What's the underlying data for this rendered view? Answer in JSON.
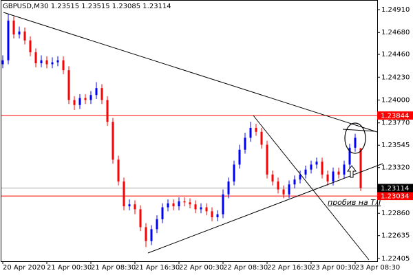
{
  "chart_data": {
    "type": "candlestick",
    "title": "GBPUSD,M30  1.23515 1.23515 1.23085 1.23114",
    "categories": [
      "20 Apr 2020",
      null,
      null,
      null,
      null,
      null,
      null,
      null,
      "21 Apr 00:30",
      null,
      null,
      null,
      null,
      null,
      null,
      null,
      "21 Apr 08:30",
      null,
      null,
      null,
      null,
      null,
      null,
      null,
      "21 Apr 16:30",
      null,
      null,
      null,
      null,
      null,
      null,
      null,
      "22 Apr 00:30",
      null,
      null,
      null,
      null,
      null,
      null,
      null,
      "22 Apr 08:30",
      null,
      null,
      null,
      null,
      null,
      null,
      null,
      "22 Apr 16:30",
      null,
      null,
      null,
      null,
      null,
      null,
      null,
      "23 Apr 00:30",
      null,
      null,
      null,
      null,
      null,
      null,
      null,
      "23 Apr 08:30",
      null
    ],
    "open": [
      1.2436,
      1.244,
      1.248,
      1.2466,
      1.2469,
      1.246,
      1.2448,
      1.2437,
      1.244,
      1.2436,
      1.2438,
      1.244,
      1.243,
      1.24,
      1.2395,
      1.2402,
      1.24,
      1.2405,
      1.2412,
      1.24,
      1.2378,
      1.234,
      1.2318,
      1.2293,
      1.2295,
      1.229,
      1.2272,
      1.2258,
      1.227,
      1.228,
      1.2292,
      1.2296,
      1.2293,
      1.2298,
      1.2297,
      1.2295,
      1.229,
      1.2292,
      1.2288,
      1.2282,
      1.2285,
      1.2305,
      1.2318,
      1.2335,
      1.235,
      1.2362,
      1.2372,
      1.2368,
      1.2355,
      1.2325,
      1.2318,
      1.231,
      1.2305,
      1.2315,
      1.232,
      1.2325,
      1.233,
      1.2335,
      1.2338,
      1.2325,
      1.2318,
      1.2328,
      1.2325,
      1.2335,
      1.2352,
      1.23515
    ],
    "high": [
      1.2445,
      1.2487,
      1.2484,
      1.2474,
      1.2473,
      1.2464,
      1.2452,
      1.2445,
      1.2444,
      1.2443,
      1.2444,
      1.2444,
      1.2434,
      1.2404,
      1.2406,
      1.2406,
      1.2409,
      1.2418,
      1.2416,
      1.2404,
      1.2382,
      1.2344,
      1.2322,
      1.23,
      1.2299,
      1.2294,
      1.2276,
      1.2274,
      1.2284,
      1.2296,
      1.23,
      1.23,
      1.2302,
      1.2302,
      1.2301,
      1.2299,
      1.2296,
      1.2296,
      1.2292,
      1.2289,
      1.231,
      1.2322,
      1.2339,
      1.2355,
      1.2367,
      1.2378,
      1.2376,
      1.2372,
      1.2359,
      1.2329,
      1.2322,
      1.2314,
      1.2319,
      1.2324,
      1.2329,
      1.2334,
      1.2339,
      1.2342,
      1.2342,
      1.2329,
      1.2332,
      1.2332,
      1.2339,
      1.2356,
      1.2366,
      1.23515
    ],
    "low": [
      1.2432,
      1.2436,
      1.2462,
      1.2462,
      1.2456,
      1.2444,
      1.2433,
      1.2433,
      1.2432,
      1.2432,
      1.2434,
      1.2426,
      1.2396,
      1.239,
      1.2391,
      1.2396,
      1.2396,
      1.2401,
      1.2396,
      1.2374,
      1.2336,
      1.2314,
      1.2289,
      1.2289,
      1.2285,
      1.2268,
      1.2252,
      1.2254,
      1.2266,
      1.2276,
      1.2288,
      1.2289,
      1.2289,
      1.2293,
      1.2291,
      1.2286,
      1.2286,
      1.2284,
      1.2278,
      1.2278,
      1.2281,
      1.2301,
      1.2314,
      1.2331,
      1.2346,
      1.2358,
      1.2364,
      1.2351,
      1.2321,
      1.2314,
      1.2306,
      1.2301,
      1.2301,
      1.2311,
      1.2316,
      1.2321,
      1.2326,
      1.2331,
      1.2321,
      1.2314,
      1.2314,
      1.2321,
      1.2321,
      1.2331,
      1.2348,
      1.23085
    ],
    "close": [
      1.244,
      1.248,
      1.2466,
      1.2469,
      1.246,
      1.2448,
      1.2437,
      1.244,
      1.2436,
      1.2438,
      1.244,
      1.243,
      1.24,
      1.2395,
      1.2402,
      1.24,
      1.2405,
      1.2412,
      1.24,
      1.2378,
      1.234,
      1.2318,
      1.2293,
      1.2295,
      1.229,
      1.2272,
      1.2258,
      1.227,
      1.228,
      1.2292,
      1.2296,
      1.2293,
      1.2298,
      1.2297,
      1.2295,
      1.229,
      1.2292,
      1.2288,
      1.2282,
      1.2285,
      1.2305,
      1.2318,
      1.2335,
      1.235,
      1.2362,
      1.2372,
      1.2368,
      1.2355,
      1.2325,
      1.2318,
      1.231,
      1.2305,
      1.2315,
      1.232,
      1.2325,
      1.233,
      1.2335,
      1.2338,
      1.2325,
      1.2318,
      1.2328,
      1.2325,
      1.2335,
      1.2352,
      1.2362,
      1.23114
    ],
    "up_color": "#0000ff",
    "down_color": "#ff0000",
    "ylim": [
      1.22377,
      1.25007
    ],
    "yticks": [
      {
        "value": 1.2491,
        "label": "1.24910"
      },
      {
        "value": 1.2468,
        "label": "1.24680"
      },
      {
        "value": 1.2446,
        "label": "1.24460"
      },
      {
        "value": 1.2423,
        "label": "1.24230"
      },
      {
        "value": 1.24,
        "label": "1.24000"
      },
      {
        "value": 1.2377,
        "label": "1.23770"
      },
      {
        "value": 1.23545,
        "label": "1.23545"
      },
      {
        "value": 1.2332,
        "label": "1.23320"
      },
      {
        "value": 1.2286,
        "label": "1.22860"
      },
      {
        "value": 1.22635,
        "label": "1.22635"
      },
      {
        "value": 1.22405,
        "label": "1.22405"
      }
    ],
    "levels": [
      {
        "value": 1.23844,
        "color": "#ff0000"
      },
      {
        "value": 1.23034,
        "color": "#ff0000"
      },
      {
        "value": 1.23114,
        "color": "#a0a0a0",
        "label_color": "#000000"
      }
    ],
    "annotation": "пробив на ТЛ"
  }
}
